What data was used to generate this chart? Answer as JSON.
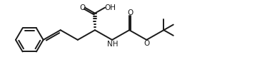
{
  "bg_color": "#ffffff",
  "line_color": "#1a1a1a",
  "line_width": 1.4,
  "figsize": [
    3.88,
    1.08
  ],
  "dpi": 100,
  "xlim": [
    0,
    10
  ],
  "ylim": [
    0,
    2.8
  ]
}
